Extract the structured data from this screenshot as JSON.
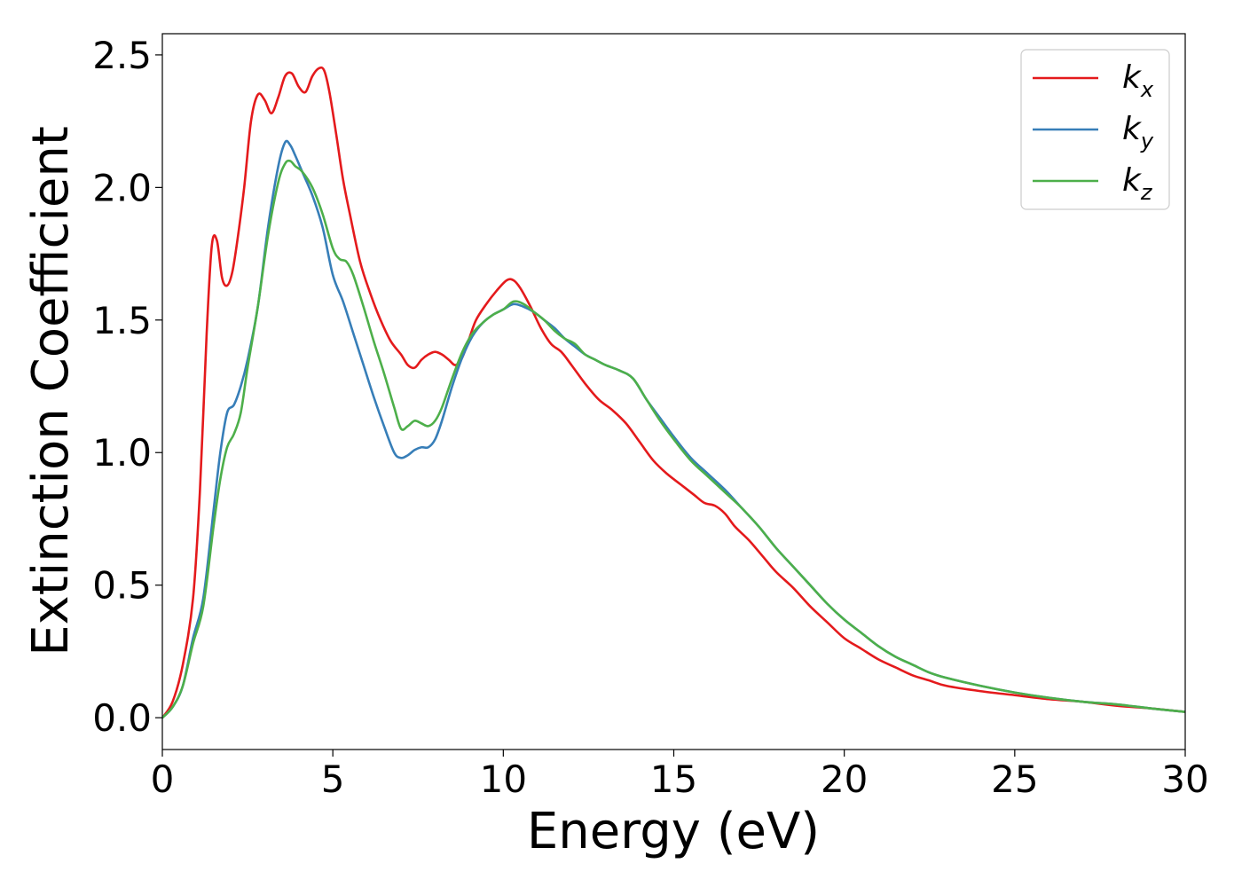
{
  "chart_data": {
    "type": "line",
    "xlabel": "Energy (eV)",
    "ylabel": "Extinction Coefficient",
    "xlim": [
      0,
      30
    ],
    "ylim": [
      -0.12,
      2.58
    ],
    "xticks": [
      0,
      5,
      10,
      15,
      20,
      25,
      30
    ],
    "yticks": [
      0.0,
      0.5,
      1.0,
      1.5,
      2.0,
      2.5
    ],
    "xtick_labels": [
      "0",
      "5",
      "10",
      "15",
      "20",
      "25",
      "30"
    ],
    "ytick_labels": [
      "0.0",
      "0.5",
      "1.0",
      "1.5",
      "2.0",
      "2.5"
    ],
    "grid": false,
    "legend_position": "top-right",
    "series": [
      {
        "name": "k_x",
        "label_base": "k",
        "label_sub": "x",
        "color": "#e41a1c",
        "x": [
          0,
          0.3,
          0.6,
          0.9,
          1.1,
          1.3,
          1.45,
          1.6,
          1.75,
          1.9,
          2.05,
          2.2,
          2.4,
          2.6,
          2.8,
          3.0,
          3.2,
          3.4,
          3.6,
          3.8,
          4.0,
          4.2,
          4.4,
          4.6,
          4.75,
          4.9,
          5.1,
          5.3,
          5.5,
          5.8,
          6.1,
          6.4,
          6.7,
          7.0,
          7.2,
          7.4,
          7.6,
          7.8,
          8.0,
          8.2,
          8.4,
          8.6,
          8.8,
          9.0,
          9.2,
          9.5,
          9.8,
          10.1,
          10.3,
          10.5,
          10.8,
          11.1,
          11.4,
          11.7,
          12.0,
          12.4,
          12.8,
          13.2,
          13.6,
          14.0,
          14.4,
          14.8,
          15.2,
          15.6,
          15.9,
          16.2,
          16.5,
          16.8,
          17.2,
          17.6,
          18.0,
          18.5,
          19.0,
          19.5,
          20.0,
          20.5,
          21.0,
          21.5,
          22.0,
          22.5,
          23.0,
          24.0,
          25.0,
          26.0,
          27.0,
          28.0,
          29.0,
          30.0
        ],
        "y": [
          0.0,
          0.06,
          0.2,
          0.45,
          0.85,
          1.45,
          1.78,
          1.8,
          1.66,
          1.63,
          1.68,
          1.8,
          2.0,
          2.25,
          2.35,
          2.33,
          2.28,
          2.34,
          2.42,
          2.43,
          2.38,
          2.36,
          2.42,
          2.45,
          2.44,
          2.36,
          2.2,
          2.03,
          1.9,
          1.72,
          1.6,
          1.5,
          1.42,
          1.37,
          1.33,
          1.32,
          1.35,
          1.37,
          1.38,
          1.37,
          1.35,
          1.33,
          1.36,
          1.43,
          1.5,
          1.56,
          1.61,
          1.65,
          1.65,
          1.62,
          1.55,
          1.47,
          1.41,
          1.38,
          1.33,
          1.26,
          1.2,
          1.16,
          1.11,
          1.04,
          0.97,
          0.92,
          0.88,
          0.84,
          0.81,
          0.8,
          0.77,
          0.72,
          0.67,
          0.61,
          0.55,
          0.49,
          0.42,
          0.36,
          0.3,
          0.26,
          0.22,
          0.19,
          0.16,
          0.14,
          0.12,
          0.1,
          0.085,
          0.07,
          0.06,
          0.045,
          0.035,
          0.022
        ]
      },
      {
        "name": "k_y",
        "label_base": "k",
        "label_sub": "y",
        "color": "#377eb8",
        "x": [
          0,
          0.3,
          0.6,
          0.9,
          1.2,
          1.5,
          1.7,
          1.9,
          2.1,
          2.3,
          2.5,
          2.8,
          3.1,
          3.4,
          3.6,
          3.75,
          3.9,
          4.1,
          4.4,
          4.7,
          5.0,
          5.3,
          5.6,
          5.9,
          6.2,
          6.5,
          6.8,
          7.0,
          7.2,
          7.4,
          7.6,
          7.8,
          8.0,
          8.2,
          8.5,
          8.8,
          9.1,
          9.4,
          9.7,
          10.0,
          10.3,
          10.6,
          10.9,
          11.2,
          11.5,
          11.8,
          12.1,
          12.4,
          12.7,
          13.0,
          13.4,
          13.8,
          14.2,
          14.6,
          15.0,
          15.5,
          16.0,
          16.5,
          17.0,
          17.5,
          18.0,
          18.5,
          19.0,
          19.5,
          20.0,
          20.5,
          21.0,
          21.5,
          22.0,
          22.5,
          23.0,
          24.0,
          25.0,
          26.0,
          27.0,
          28.0,
          29.0,
          30.0
        ],
        "y": [
          0.0,
          0.04,
          0.12,
          0.3,
          0.45,
          0.78,
          1.0,
          1.15,
          1.18,
          1.25,
          1.35,
          1.55,
          1.85,
          2.08,
          2.17,
          2.16,
          2.12,
          2.06,
          1.97,
          1.85,
          1.67,
          1.57,
          1.45,
          1.33,
          1.21,
          1.1,
          1.0,
          0.98,
          0.99,
          1.01,
          1.02,
          1.02,
          1.05,
          1.12,
          1.25,
          1.36,
          1.44,
          1.49,
          1.52,
          1.54,
          1.56,
          1.55,
          1.53,
          1.5,
          1.47,
          1.43,
          1.4,
          1.37,
          1.35,
          1.33,
          1.31,
          1.28,
          1.2,
          1.13,
          1.06,
          0.98,
          0.92,
          0.86,
          0.79,
          0.72,
          0.64,
          0.57,
          0.5,
          0.43,
          0.37,
          0.32,
          0.27,
          0.23,
          0.2,
          0.17,
          0.15,
          0.12,
          0.095,
          0.075,
          0.06,
          0.05,
          0.035,
          0.022
        ]
      },
      {
        "name": "k_z",
        "label_base": "k",
        "label_sub": "z",
        "color": "#4daf4a",
        "x": [
          0,
          0.3,
          0.6,
          0.9,
          1.2,
          1.5,
          1.7,
          1.9,
          2.1,
          2.3,
          2.5,
          2.8,
          3.1,
          3.4,
          3.6,
          3.75,
          3.9,
          4.1,
          4.4,
          4.7,
          5.0,
          5.2,
          5.4,
          5.6,
          5.9,
          6.2,
          6.5,
          6.8,
          7.0,
          7.2,
          7.4,
          7.6,
          7.8,
          8.0,
          8.2,
          8.5,
          8.8,
          9.1,
          9.4,
          9.7,
          10.0,
          10.3,
          10.6,
          10.9,
          11.2,
          11.5,
          11.8,
          12.1,
          12.4,
          12.7,
          13.0,
          13.4,
          13.8,
          14.2,
          14.6,
          15.0,
          15.5,
          16.0,
          16.5,
          17.0,
          17.5,
          18.0,
          18.5,
          19.0,
          19.5,
          20.0,
          20.5,
          21.0,
          21.5,
          22.0,
          22.5,
          23.0,
          24.0,
          25.0,
          26.0,
          27.0,
          28.0,
          29.0,
          30.0
        ],
        "y": [
          0.0,
          0.04,
          0.12,
          0.28,
          0.42,
          0.72,
          0.9,
          1.02,
          1.07,
          1.15,
          1.32,
          1.55,
          1.82,
          2.02,
          2.09,
          2.1,
          2.08,
          2.06,
          2.0,
          1.9,
          1.77,
          1.73,
          1.72,
          1.67,
          1.55,
          1.42,
          1.3,
          1.17,
          1.09,
          1.1,
          1.12,
          1.11,
          1.1,
          1.12,
          1.17,
          1.28,
          1.38,
          1.45,
          1.49,
          1.52,
          1.54,
          1.57,
          1.56,
          1.53,
          1.5,
          1.46,
          1.43,
          1.41,
          1.37,
          1.35,
          1.33,
          1.31,
          1.28,
          1.2,
          1.12,
          1.05,
          0.97,
          0.91,
          0.85,
          0.79,
          0.72,
          0.64,
          0.57,
          0.5,
          0.43,
          0.37,
          0.32,
          0.27,
          0.23,
          0.2,
          0.17,
          0.15,
          0.12,
          0.095,
          0.075,
          0.06,
          0.05,
          0.035,
          0.022
        ]
      }
    ]
  }
}
